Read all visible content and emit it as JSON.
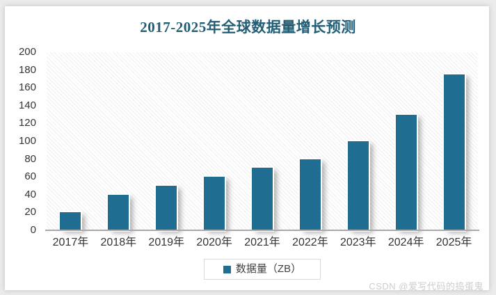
{
  "chart_data": {
    "type": "bar",
    "title": "2017-2025年全球数据量增长预测",
    "categories": [
      "2017年",
      "2018年",
      "2019年",
      "2020年",
      "2021年",
      "2022年",
      "2023年",
      "2024年",
      "2025年"
    ],
    "series": [
      {
        "name": "数据量（ZB）",
        "values": [
          20,
          40,
          50,
          60,
          70,
          80,
          100,
          130,
          175
        ]
      }
    ],
    "xlabel": "",
    "ylabel": "",
    "ylim": [
      0,
      200
    ],
    "ytick_step": 20,
    "grid": false,
    "legend_position": "bottom",
    "plot_background": "light-diagonal-hatch"
  },
  "legend": {
    "label": "数据量（ZB）"
  },
  "watermark": {
    "text": "CSDN @爱写代码的捣蛋鬼"
  },
  "colors": {
    "bar": "#1f6e91",
    "title_text": "#215e76",
    "axis_line": "#a8a8a8",
    "tick_label": "#333333",
    "legend_border": "#d9d9d9",
    "watermark_text": "#cccccc",
    "page_background": "#ebebeb",
    "card_background": "#ffffff"
  }
}
